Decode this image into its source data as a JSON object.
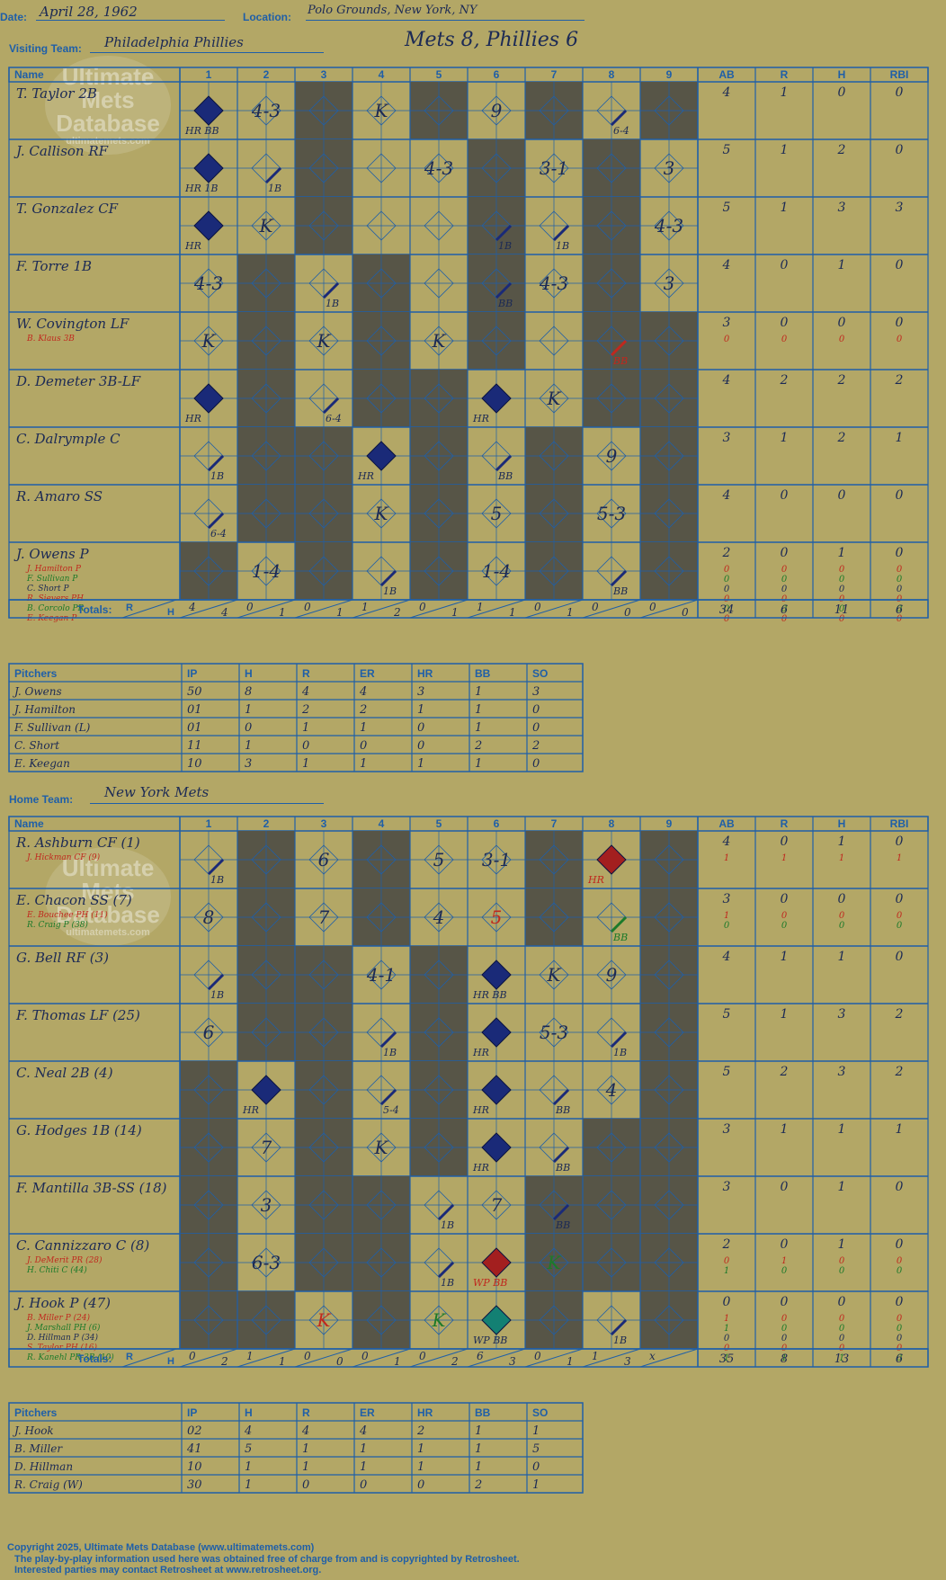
{
  "header": {
    "date_label": "Date:",
    "date": "April 28, 1962",
    "location_label": "Location:",
    "location": "Polo Grounds, New York, NY",
    "visiting_label": "Visiting Team:",
    "visiting_team": "Philadelphia Phillies",
    "score_title": "Mets 8, Phillies 6",
    "home_label": "Home Team:",
    "home_team": "New York Mets"
  },
  "watermark": {
    "line1": "Ultimate",
    "line2": "Mets",
    "line3": "Database",
    "url": "ultimatemets.com"
  },
  "grid_headers": {
    "name": "Name",
    "innings": [
      "1",
      "2",
      "3",
      "4",
      "5",
      "6",
      "7",
      "8",
      "9"
    ],
    "stats": [
      "AB",
      "R",
      "H",
      "RBI"
    ],
    "totals": "Totals:",
    "r": "R",
    "h": "H"
  },
  "pitcher_headers": [
    "Pitchers",
    "IP",
    "H",
    "R",
    "ER",
    "HR",
    "BB",
    "SO"
  ],
  "visitors": {
    "batters": [
      {
        "name": "T. Taylor 2B",
        "subs": [],
        "stats": [
          [
            "4",
            "1",
            "0",
            "0"
          ]
        ]
      },
      {
        "name": "J. Callison RF",
        "subs": [],
        "stats": [
          [
            "5",
            "1",
            "2",
            "0"
          ]
        ]
      },
      {
        "name": "T. Gonzalez CF",
        "subs": [],
        "stats": [
          [
            "5",
            "1",
            "3",
            "3"
          ]
        ]
      },
      {
        "name": "F. Torre 1B",
        "subs": [],
        "stats": [
          [
            "4",
            "0",
            "1",
            "0"
          ]
        ]
      },
      {
        "name": "W. Covington LF",
        "subs": [
          {
            "t": "B. Klaus 3B",
            "c": "#c0281e"
          }
        ],
        "stats": [
          [
            "3",
            "0",
            "0",
            "0"
          ],
          [
            "0",
            "0",
            "0",
            "0"
          ]
        ]
      },
      {
        "name": "D. Demeter 3B-LF",
        "subs": [],
        "stats": [
          [
            "4",
            "2",
            "2",
            "2"
          ]
        ]
      },
      {
        "name": "C. Dalrymple C",
        "subs": [],
        "stats": [
          [
            "3",
            "1",
            "2",
            "1"
          ]
        ]
      },
      {
        "name": "R. Amaro SS",
        "subs": [],
        "stats": [
          [
            "4",
            "0",
            "0",
            "0"
          ]
        ]
      },
      {
        "name": "J. Owens P",
        "subs": [
          {
            "t": "J. Hamilton P",
            "c": "#c0281e"
          },
          {
            "t": "F. Sullivan P",
            "c": "#1c7a2a"
          },
          {
            "t": "C. Short P",
            "c": "#1c2a55"
          },
          {
            "t": "R. Sievers PH",
            "c": "#c0281e"
          },
          {
            "t": "B. Corcolo PR",
            "c": "#1c7a2a"
          },
          {
            "t": "E. Keegan P",
            "c": "#c0281e"
          }
        ],
        "stats": [
          [
            "2",
            "0",
            "1",
            "0"
          ],
          [
            "0",
            "0",
            "0",
            "0"
          ],
          [
            "0",
            "0",
            "0",
            "0"
          ],
          [
            "0",
            "0",
            "0",
            "0"
          ],
          [
            "0",
            "0",
            "0",
            "0"
          ],
          [
            "0",
            "0",
            "0",
            "0"
          ],
          [
            "0",
            "0",
            "0",
            "0"
          ]
        ]
      }
    ],
    "totals": {
      "innings": [
        [
          "4",
          "4"
        ],
        [
          "0",
          "1"
        ],
        [
          "0",
          "1"
        ],
        [
          "1",
          "2"
        ],
        [
          "0",
          "1"
        ],
        [
          "1",
          "1"
        ],
        [
          "0",
          "1"
        ],
        [
          "0",
          "0"
        ],
        [
          "0",
          "0"
        ]
      ],
      "stats": [
        "34",
        "6",
        "11",
        "6"
      ]
    },
    "pitchers": [
      [
        "J. Owens",
        "50",
        "8",
        "4",
        "4",
        "3",
        "1",
        "3"
      ],
      [
        "J. Hamilton",
        "01",
        "1",
        "2",
        "2",
        "1",
        "1",
        "0"
      ],
      [
        "F. Sullivan (L)",
        "01",
        "0",
        "1",
        "1",
        "0",
        "1",
        "0"
      ],
      [
        "C. Short",
        "11",
        "1",
        "0",
        "0",
        "0",
        "2",
        "2"
      ],
      [
        "E. Keegan",
        "10",
        "3",
        "1",
        "1",
        "1",
        "1",
        "0"
      ]
    ]
  },
  "home": {
    "batters": [
      {
        "name": "R. Ashburn CF (1)",
        "subs": [
          {
            "t": "J. Hickman CF (9)",
            "c": "#c0281e"
          }
        ],
        "stats": [
          [
            "4",
            "0",
            "1",
            "0"
          ],
          [
            "1",
            "1",
            "1",
            "1"
          ]
        ]
      },
      {
        "name": "E. Chacon SS (7)",
        "subs": [
          {
            "t": "E. Bouchee PH (11)",
            "c": "#c0281e"
          },
          {
            "t": "R. Craig P (38)",
            "c": "#1c7a2a"
          }
        ],
        "stats": [
          [
            "3",
            "0",
            "0",
            "0"
          ],
          [
            "1",
            "0",
            "0",
            "0"
          ],
          [
            "0",
            "0",
            "0",
            "0"
          ]
        ]
      },
      {
        "name": "G. Bell RF (3)",
        "subs": [],
        "stats": [
          [
            "4",
            "1",
            "1",
            "0"
          ]
        ]
      },
      {
        "name": "F. Thomas LF (25)",
        "subs": [],
        "stats": [
          [
            "5",
            "1",
            "3",
            "2"
          ]
        ]
      },
      {
        "name": "C. Neal 2B (4)",
        "subs": [],
        "stats": [
          [
            "5",
            "2",
            "3",
            "2"
          ]
        ]
      },
      {
        "name": "G. Hodges 1B (14)",
        "subs": [],
        "stats": [
          [
            "3",
            "1",
            "1",
            "1"
          ]
        ]
      },
      {
        "name": "F. Mantilla 3B-SS (18)",
        "subs": [],
        "stats": [
          [
            "3",
            "0",
            "1",
            "0"
          ]
        ]
      },
      {
        "name": "C. Cannizzaro C (8)",
        "subs": [
          {
            "t": "J. DeMerit PR (28)",
            "c": "#c0281e"
          },
          {
            "t": "H. Chiti C (44)",
            "c": "#1c7a2a"
          }
        ],
        "stats": [
          [
            "2",
            "0",
            "1",
            "0"
          ],
          [
            "0",
            "1",
            "0",
            "0"
          ],
          [
            "1",
            "0",
            "0",
            "0"
          ]
        ]
      },
      {
        "name": "J. Hook P (47)",
        "subs": [
          {
            "t": "B. Miller P (24)",
            "c": "#c0281e"
          },
          {
            "t": "J. Marshall PH (6)",
            "c": "#1c7a2a"
          },
          {
            "t": "D. Hillman P (34)",
            "c": "#1c2a55"
          },
          {
            "t": "S. Taylor PH (16)",
            "c": "#c0281e"
          },
          {
            "t": "R. Kanehl PR-3B (10)",
            "c": "#1c7a2a"
          }
        ],
        "stats": [
          [
            "0",
            "0",
            "0",
            "0"
          ],
          [
            "1",
            "0",
            "0",
            "0"
          ],
          [
            "1",
            "0",
            "0",
            "0"
          ],
          [
            "0",
            "0",
            "0",
            "0"
          ],
          [
            "0",
            "0",
            "0",
            "0"
          ],
          [
            "1",
            "1",
            "1",
            "0"
          ]
        ]
      }
    ],
    "totals": {
      "innings": [
        [
          "0",
          "2"
        ],
        [
          "1",
          "1"
        ],
        [
          "0",
          "0"
        ],
        [
          "0",
          "1"
        ],
        [
          "0",
          "2"
        ],
        [
          "6",
          "3"
        ],
        [
          "0",
          "1"
        ],
        [
          "1",
          "3"
        ],
        [
          "x",
          ""
        ]
      ],
      "stats": [
        "35",
        "8",
        "13",
        "6"
      ]
    },
    "pitchers": [
      [
        "J. Hook",
        "02",
        "4",
        "4",
        "4",
        "2",
        "1",
        "1"
      ],
      [
        "B. Miller",
        "41",
        "5",
        "1",
        "1",
        "1",
        "1",
        "5"
      ],
      [
        "D. Hillman",
        "10",
        "1",
        "1",
        "1",
        "1",
        "1",
        "0"
      ],
      [
        "R. Craig (W)",
        "30",
        "1",
        "0",
        "0",
        "0",
        "2",
        "1"
      ]
    ]
  },
  "footer": {
    "line1": "Copyright 2025, Ultimate Mets Database (www.ultimatemets.com)",
    "line2": "The play-by-play information used here was obtained free of charge from and is copyrighted by Retrosheet.",
    "line3": "Interested parties may contact Retrosheet at www.retrosheet.org."
  },
  "colors": {
    "grid": "#1f5fa8",
    "background": "#b3a766",
    "shade": "#575547",
    "ink": "#1c2a55",
    "red": "#c0281e",
    "green": "#1c7a2a",
    "diamond_blue": "#1a2a78",
    "diamond_red": "#a31f1f",
    "diamond_teal": "#138073"
  }
}
